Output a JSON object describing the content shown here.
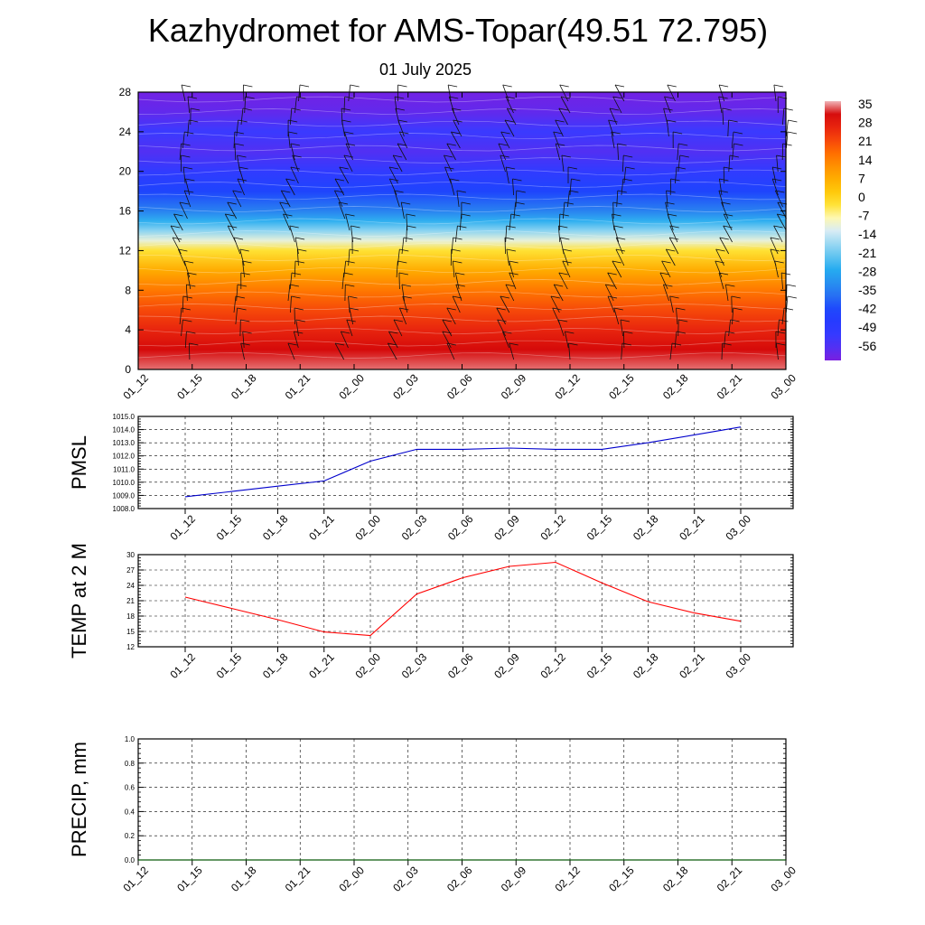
{
  "title": "Kazhydromet for AMS-Topar(49.51 72.795)",
  "subtitle": "01 July 2025",
  "colors": {
    "pmsl_line": "#0000cc",
    "temp_line": "#ff0000",
    "precip_line": "#006400",
    "grid": "#000000"
  },
  "chart_data": [
    {
      "name": "temperature-wind-cross-section",
      "type": "heatmap",
      "x": [
        "01_12",
        "01_15",
        "01_18",
        "01_21",
        "02_00",
        "02_03",
        "02_06",
        "02_09",
        "02_12",
        "02_15",
        "02_18",
        "02_21",
        "03_00"
      ],
      "ylim": [
        0,
        28
      ],
      "yticks": [
        0,
        4,
        8,
        12,
        16,
        20,
        24,
        28
      ],
      "colorbar": {
        "labels": [
          "35",
          "28",
          "21",
          "14",
          "7",
          "0",
          "-7",
          "-14",
          "-21",
          "-28",
          "-35",
          "-42",
          "-49",
          "-56"
        ],
        "range": [
          -63,
          35
        ]
      },
      "temperature_profile": [
        {
          "y": 0,
          "value": 33
        },
        {
          "y": 2,
          "value": 30
        },
        {
          "y": 4,
          "value": 25
        },
        {
          "y": 6,
          "value": 20
        },
        {
          "y": 8,
          "value": 14
        },
        {
          "y": 10,
          "value": 6
        },
        {
          "y": 12,
          "value": -4
        },
        {
          "y": 13,
          "value": -12
        },
        {
          "y": 14,
          "value": -20
        },
        {
          "y": 15,
          "value": -28
        },
        {
          "y": 16,
          "value": -36
        },
        {
          "y": 18,
          "value": -44
        },
        {
          "y": 20,
          "value": -52
        },
        {
          "y": 22,
          "value": -58
        },
        {
          "y": 24,
          "value": -55
        },
        {
          "y": 26,
          "value": -60
        },
        {
          "y": 28,
          "value": -62
        }
      ]
    },
    {
      "name": "pmsl",
      "type": "line",
      "ylabel": "PMSL",
      "x": [
        "01_12",
        "01_15",
        "01_18",
        "01_21",
        "02_00",
        "02_03",
        "02_06",
        "02_09",
        "02_12",
        "02_15",
        "02_18",
        "02_21",
        "03_00"
      ],
      "ylim": [
        1008.0,
        1015.0
      ],
      "yticks": [
        "1008.0",
        "1009.0",
        "1010.0",
        "1011.0",
        "1012.0",
        "1013.0",
        "1014.0",
        "1015.0"
      ],
      "series": [
        {
          "values": [
            1008.9,
            1009.3,
            1009.7,
            1010.1,
            1011.6,
            1012.5,
            1012.5,
            1012.6,
            1012.5,
            1012.5,
            1013.0,
            1013.6,
            1014.2
          ]
        }
      ]
    },
    {
      "name": "temp-2m",
      "type": "line",
      "ylabel": "TEMP at 2 M",
      "x": [
        "01_12",
        "01_15",
        "01_18",
        "01_21",
        "02_00",
        "02_03",
        "02_06",
        "02_09",
        "02_12",
        "02_15",
        "02_18",
        "02_21",
        "03_00"
      ],
      "ylim": [
        12,
        30
      ],
      "yticks": [
        "12",
        "15",
        "18",
        "21",
        "24",
        "27",
        "30"
      ],
      "series": [
        {
          "values": [
            21.7,
            19.5,
            17.3,
            14.9,
            14.2,
            22.3,
            25.5,
            27.7,
            28.5,
            24.5,
            20.8,
            18.6,
            17.0
          ]
        }
      ]
    },
    {
      "name": "precip",
      "type": "line",
      "ylabel": "PRECIP, mm",
      "x": [
        "01_12",
        "01_15",
        "01_18",
        "01_21",
        "02_00",
        "02_03",
        "02_06",
        "02_09",
        "02_12",
        "02_15",
        "02_18",
        "02_21",
        "03_00"
      ],
      "ylim": [
        0.0,
        1.0
      ],
      "yticks": [
        "0.0",
        "0.2",
        "0.4",
        "0.6",
        "0.8",
        "1.0"
      ],
      "series": [
        {
          "values": [
            0,
            0,
            0,
            0,
            0,
            0,
            0,
            0,
            0,
            0,
            0,
            0,
            0
          ]
        }
      ]
    }
  ]
}
